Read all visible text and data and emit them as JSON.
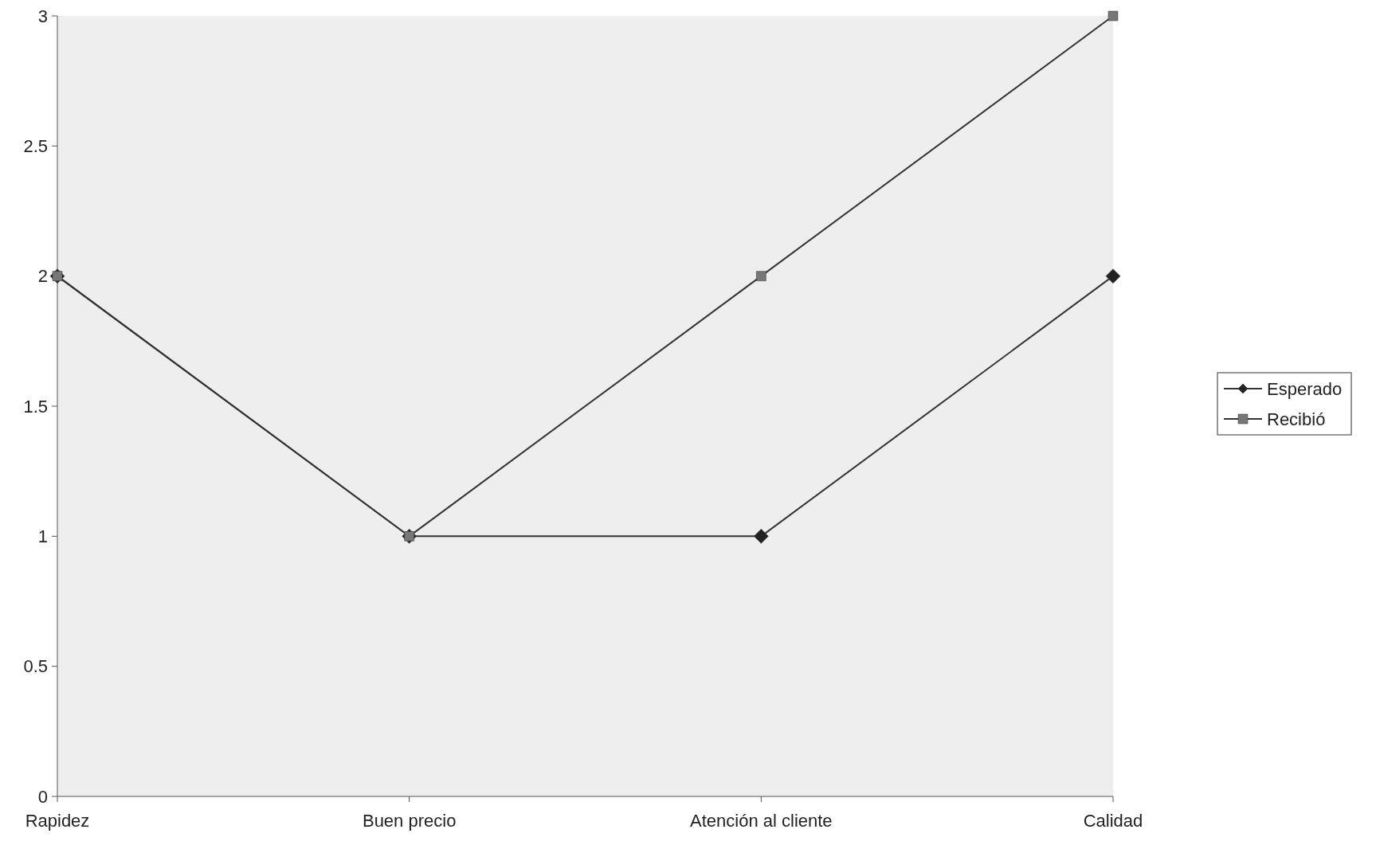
{
  "chart_data": {
    "type": "line",
    "categories": [
      "Rapidez",
      "Buen precio",
      "Atención al cliente",
      "Calidad"
    ],
    "series": [
      {
        "name": "Esperado",
        "color": "#222222",
        "values": [
          2,
          1,
          1,
          2
        ],
        "marker": "diamond"
      },
      {
        "name": "Recibió",
        "color": "#777777",
        "values": [
          2,
          1,
          2,
          3
        ],
        "marker": "square"
      }
    ],
    "ylim": [
      0,
      3
    ],
    "yticks": [
      0,
      0.5,
      1,
      1.5,
      2,
      2.5,
      3
    ],
    "grid": false,
    "legend": "right",
    "line_style": "solid"
  }
}
